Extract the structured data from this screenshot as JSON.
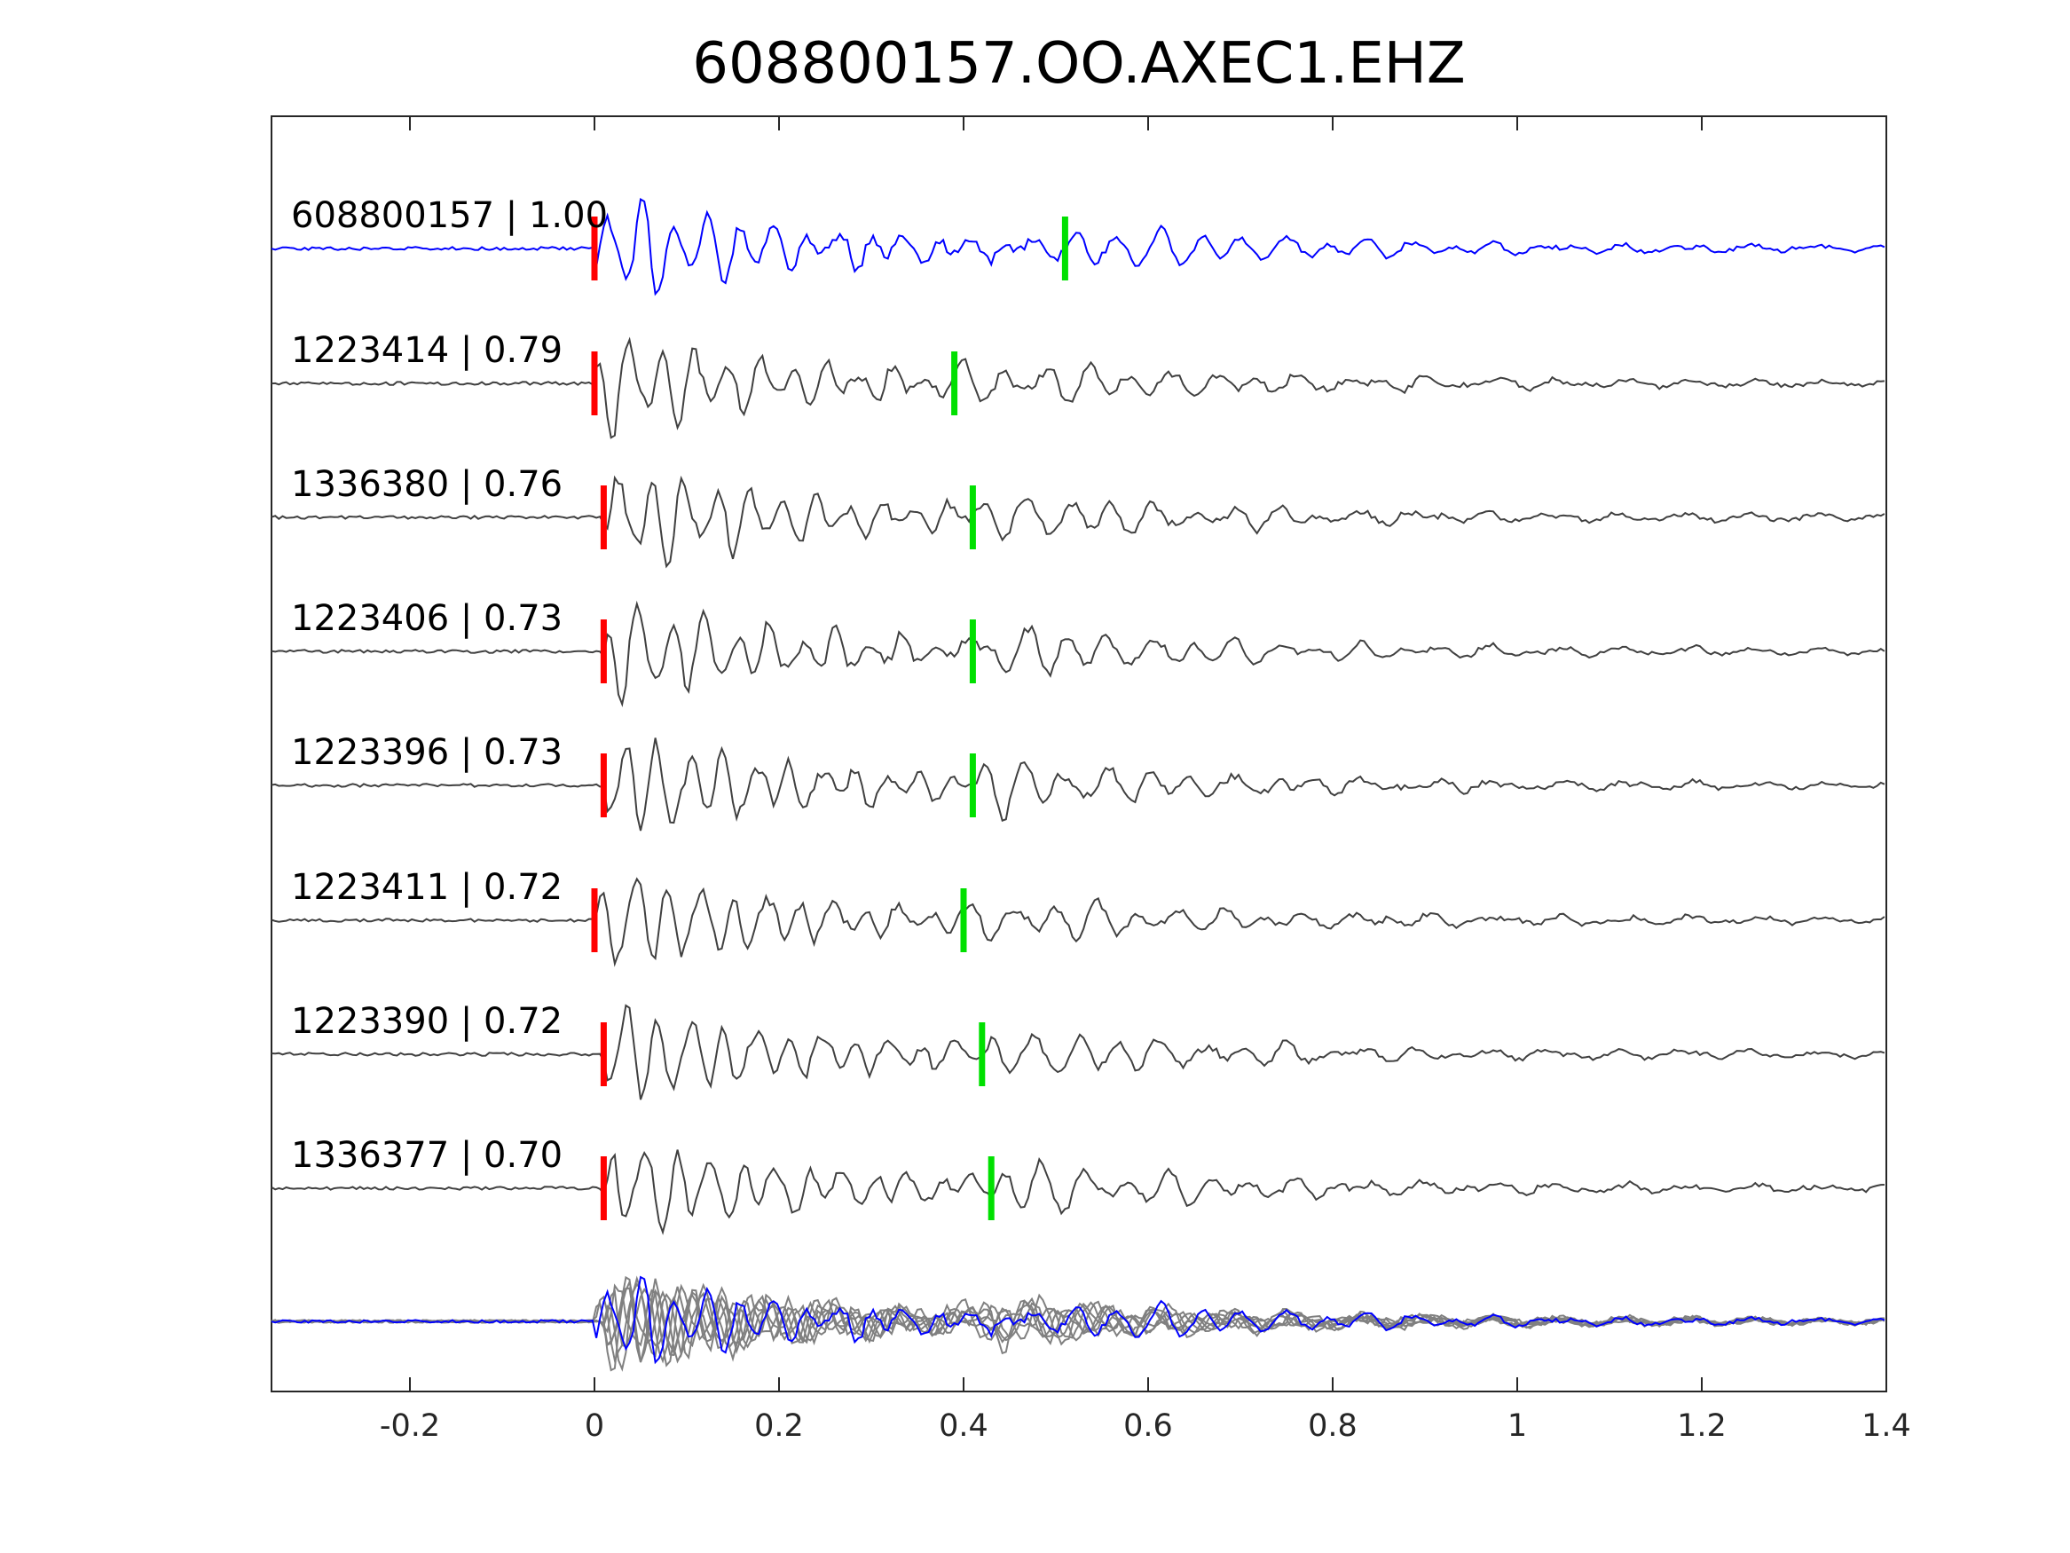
{
  "chart_data": {
    "type": "line",
    "title": "608800157.OO.AXEC1.EHZ",
    "xlabel": "",
    "ylabel": "",
    "xlim": [
      -0.35,
      1.4
    ],
    "xticks": [
      -0.2,
      0,
      0.2,
      0.4,
      0.6,
      0.8,
      1,
      1.2,
      1.4
    ],
    "xtick_labels": [
      "-0.2",
      "0",
      "0.2",
      "0.4",
      "0.6",
      "0.8",
      "1",
      "1.2",
      "1.4"
    ],
    "grid": false,
    "colors": {
      "master": "#0000ff",
      "template": "#404040",
      "stack_template": "#808080",
      "p_pick": "#ff0000",
      "s_pick": "#00e000",
      "axes": "#262626"
    },
    "series": [
      {
        "name": "608800157",
        "label": "608800157 | 1.00",
        "cc": 1.0,
        "p_pick": 0.0,
        "s_pick": 0.51,
        "color": "#0000ff"
      },
      {
        "name": "1223414",
        "label": "1223414 | 0.79",
        "cc": 0.79,
        "p_pick": 0.0,
        "s_pick": 0.39,
        "color": "#404040"
      },
      {
        "name": "1336380",
        "label": "1336380 | 0.76",
        "cc": 0.76,
        "p_pick": 0.01,
        "s_pick": 0.41,
        "color": "#404040"
      },
      {
        "name": "1223406",
        "label": "1223406 | 0.73",
        "cc": 0.73,
        "p_pick": 0.01,
        "s_pick": 0.41,
        "color": "#404040"
      },
      {
        "name": "1223396",
        "label": "1223396 | 0.73",
        "cc": 0.73,
        "p_pick": 0.01,
        "s_pick": 0.41,
        "color": "#404040"
      },
      {
        "name": "1223411",
        "label": "1223411 | 0.72",
        "cc": 0.72,
        "p_pick": 0.0,
        "s_pick": 0.4,
        "color": "#404040"
      },
      {
        "name": "1223390",
        "label": "1223390 | 0.72",
        "cc": 0.72,
        "p_pick": 0.01,
        "s_pick": 0.42,
        "color": "#404040"
      },
      {
        "name": "1336377",
        "label": "1336377 | 0.70",
        "cc": 0.7,
        "p_pick": 0.01,
        "s_pick": 0.43,
        "color": "#404040"
      }
    ],
    "stack": {
      "overlay_of": "all",
      "master_color": "#0000ff",
      "others_color": "#808080"
    }
  }
}
